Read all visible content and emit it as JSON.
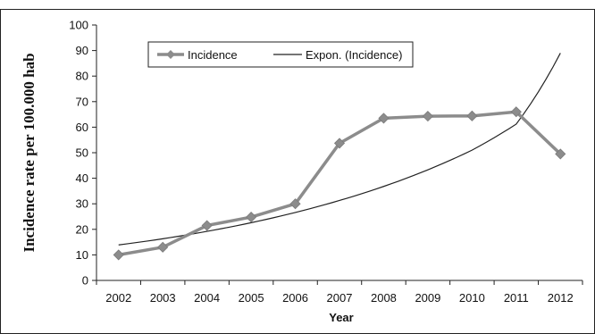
{
  "chart_data": {
    "type": "line",
    "title": "",
    "xlabel": "Year",
    "ylabel": "Incidence rate per  100.000 hab",
    "categories": [
      "2002",
      "2003",
      "2004",
      "2005",
      "2006",
      "2007",
      "2008",
      "2009",
      "2010",
      "2011",
      "2012"
    ],
    "yticks": [
      "0",
      "10",
      "20",
      "30",
      "40",
      "50",
      "60",
      "70",
      "80",
      "90",
      "100"
    ],
    "ylim": [
      0,
      100
    ],
    "grid": false,
    "legend_position": "top-left",
    "series": [
      {
        "name": "Incidence",
        "values": [
          10,
          13,
          21.5,
          24.8,
          30,
          53.7,
          63.5,
          64.3,
          64.4,
          66,
          49.5
        ],
        "color": "#8c8c8c",
        "marker": "diamond"
      },
      {
        "name": "Expon. (Incidence)",
        "values": [
          13.9,
          16.3,
          19.2,
          22.6,
          26.6,
          31.3,
          36.8,
          43.3,
          51,
          61.2,
          89
        ],
        "color": "#222222",
        "marker": "none"
      }
    ]
  }
}
